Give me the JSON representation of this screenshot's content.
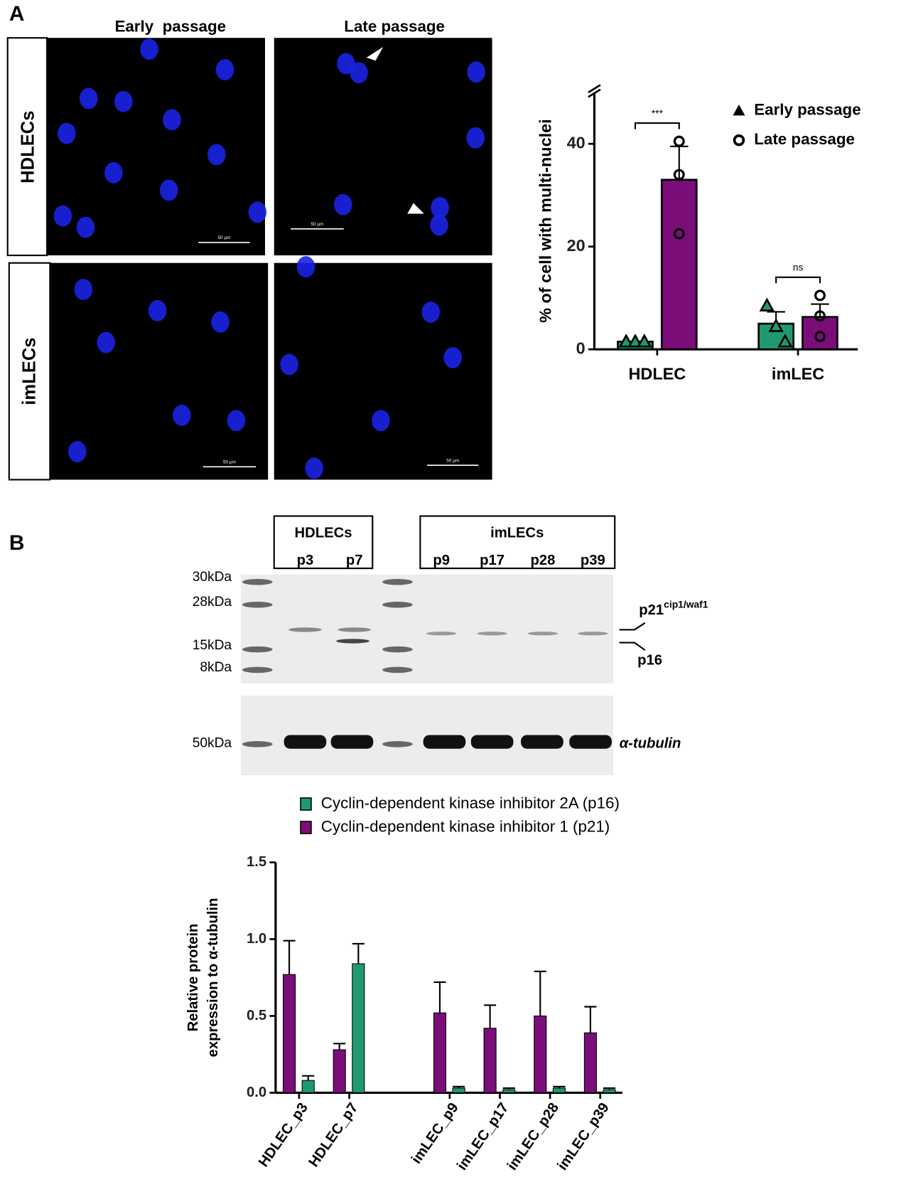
{
  "figure": {
    "panel_labels": [
      "A",
      "B"
    ],
    "microscopy": {
      "columns": [
        "Early  passage",
        "Late passage"
      ],
      "rows": [
        "HDLECs",
        "imLECs"
      ],
      "scale_bar": "50 µm"
    },
    "blot": {
      "groups": [
        {
          "label": "HDLECs",
          "lanes": [
            "p3",
            "p7"
          ]
        },
        {
          "label": "imLECs",
          "lanes": [
            "p9",
            "p17",
            "p28",
            "p39"
          ]
        }
      ],
      "markers": [
        "30kDa",
        "28kDa",
        "15kDa",
        "8kDa",
        "50kDa"
      ],
      "bands": {
        "p21": "p21",
        "p21_sup": "cip1/waf1",
        "p16": "p16",
        "tubulin": "α-tubulin"
      }
    }
  },
  "chart_data": [
    {
      "type": "bar",
      "ylabel": "% of cell with multi-nuclei",
      "categories": [
        "HDLEC",
        "imLEC"
      ],
      "series": [
        {
          "name": "Early passage",
          "color": "#1f9a6e",
          "marker": "triangle",
          "values": [
            1.5,
            5
          ],
          "errors": [
            0,
            2.3
          ],
          "points": [
            [
              1.5,
              1.5,
              1.5
            ],
            [
              8.5,
              4.5,
              1.5
            ]
          ]
        },
        {
          "name": "Late passage",
          "color": "#7b0d79",
          "marker": "circle",
          "values": [
            33,
            6.3
          ],
          "errors": [
            6.5,
            2.5
          ],
          "points": [
            [
              40.5,
              34,
              22.5
            ],
            [
              10.5,
              6.5,
              2.5
            ]
          ]
        }
      ],
      "ylim": [
        0,
        50
      ],
      "yticks": [
        0,
        20,
        40
      ],
      "annotations": [
        "***",
        "ns"
      ],
      "legend": "upper right"
    },
    {
      "type": "bar",
      "ylabel": [
        "Relative protein",
        "expression to α-tubulin"
      ],
      "categories": [
        "HDLEC_p3",
        "HDLEC_p7",
        null,
        "imLEC_p9",
        "imLEC_p17",
        "imLEC_p28",
        "imLEC_p39"
      ],
      "series": [
        {
          "name": "Cyclin-dependent kinase inhibitor 2A (p16)",
          "color": "#1f9a6e",
          "values": [
            0.08,
            0.84,
            null,
            0.03,
            0.02,
            0.03,
            0.02
          ],
          "errors": [
            0.03,
            0.13,
            null,
            0.01,
            0.01,
            0.01,
            0.01
          ]
        },
        {
          "name": "Cyclin-dependent kinase inhibitor 1 (p21)",
          "color": "#7b0d79",
          "values": [
            0.77,
            0.28,
            null,
            0.52,
            0.42,
            0.5,
            0.39
          ],
          "errors": [
            0.22,
            0.04,
            null,
            0.2,
            0.15,
            0.29,
            0.17
          ]
        }
      ],
      "ylim": [
        0,
        1.5
      ],
      "yticks": [
        {
          "value": 0,
          "label": "0.0"
        },
        0.5,
        {
          "value": 1,
          "label": "1.0"
        },
        1.5
      ],
      "legend": "top"
    }
  ]
}
